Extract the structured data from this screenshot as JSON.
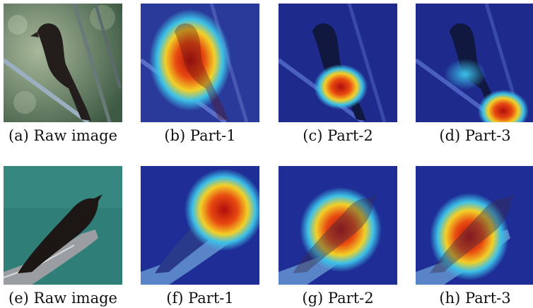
{
  "figure": {
    "panels": [
      {
        "id": "a",
        "caption": "(a) Raw image",
        "kind": "raw",
        "scene": "forest"
      },
      {
        "id": "b",
        "caption": "(b) Part-1",
        "kind": "heatmap",
        "scene": "forest",
        "focus": "head"
      },
      {
        "id": "c",
        "caption": "(c) Part-2",
        "kind": "heatmap",
        "scene": "forest",
        "focus": "body"
      },
      {
        "id": "d",
        "caption": "(d) Part-3",
        "kind": "heatmap",
        "scene": "forest",
        "focus": "tail"
      },
      {
        "id": "e",
        "caption": "(e) Raw image",
        "kind": "raw",
        "scene": "teal"
      },
      {
        "id": "f",
        "caption": "(f) Part-1",
        "kind": "heatmap",
        "scene": "teal",
        "focus": "head"
      },
      {
        "id": "g",
        "caption": "(g) Part-2",
        "kind": "heatmap",
        "scene": "teal",
        "focus": "body"
      },
      {
        "id": "h",
        "caption": "(h) Part-3",
        "kind": "heatmap",
        "scene": "teal",
        "focus": "belly"
      }
    ],
    "colors": {
      "heat_hot": "#c01010",
      "heat_warm": "#f5d020",
      "heat_cool": "#20a0f0",
      "heat_base": "#1a2a8a",
      "forest_bg": "#6f8a6a",
      "teal_bg": "#2f7f78",
      "bird": "#1f1a18"
    }
  }
}
